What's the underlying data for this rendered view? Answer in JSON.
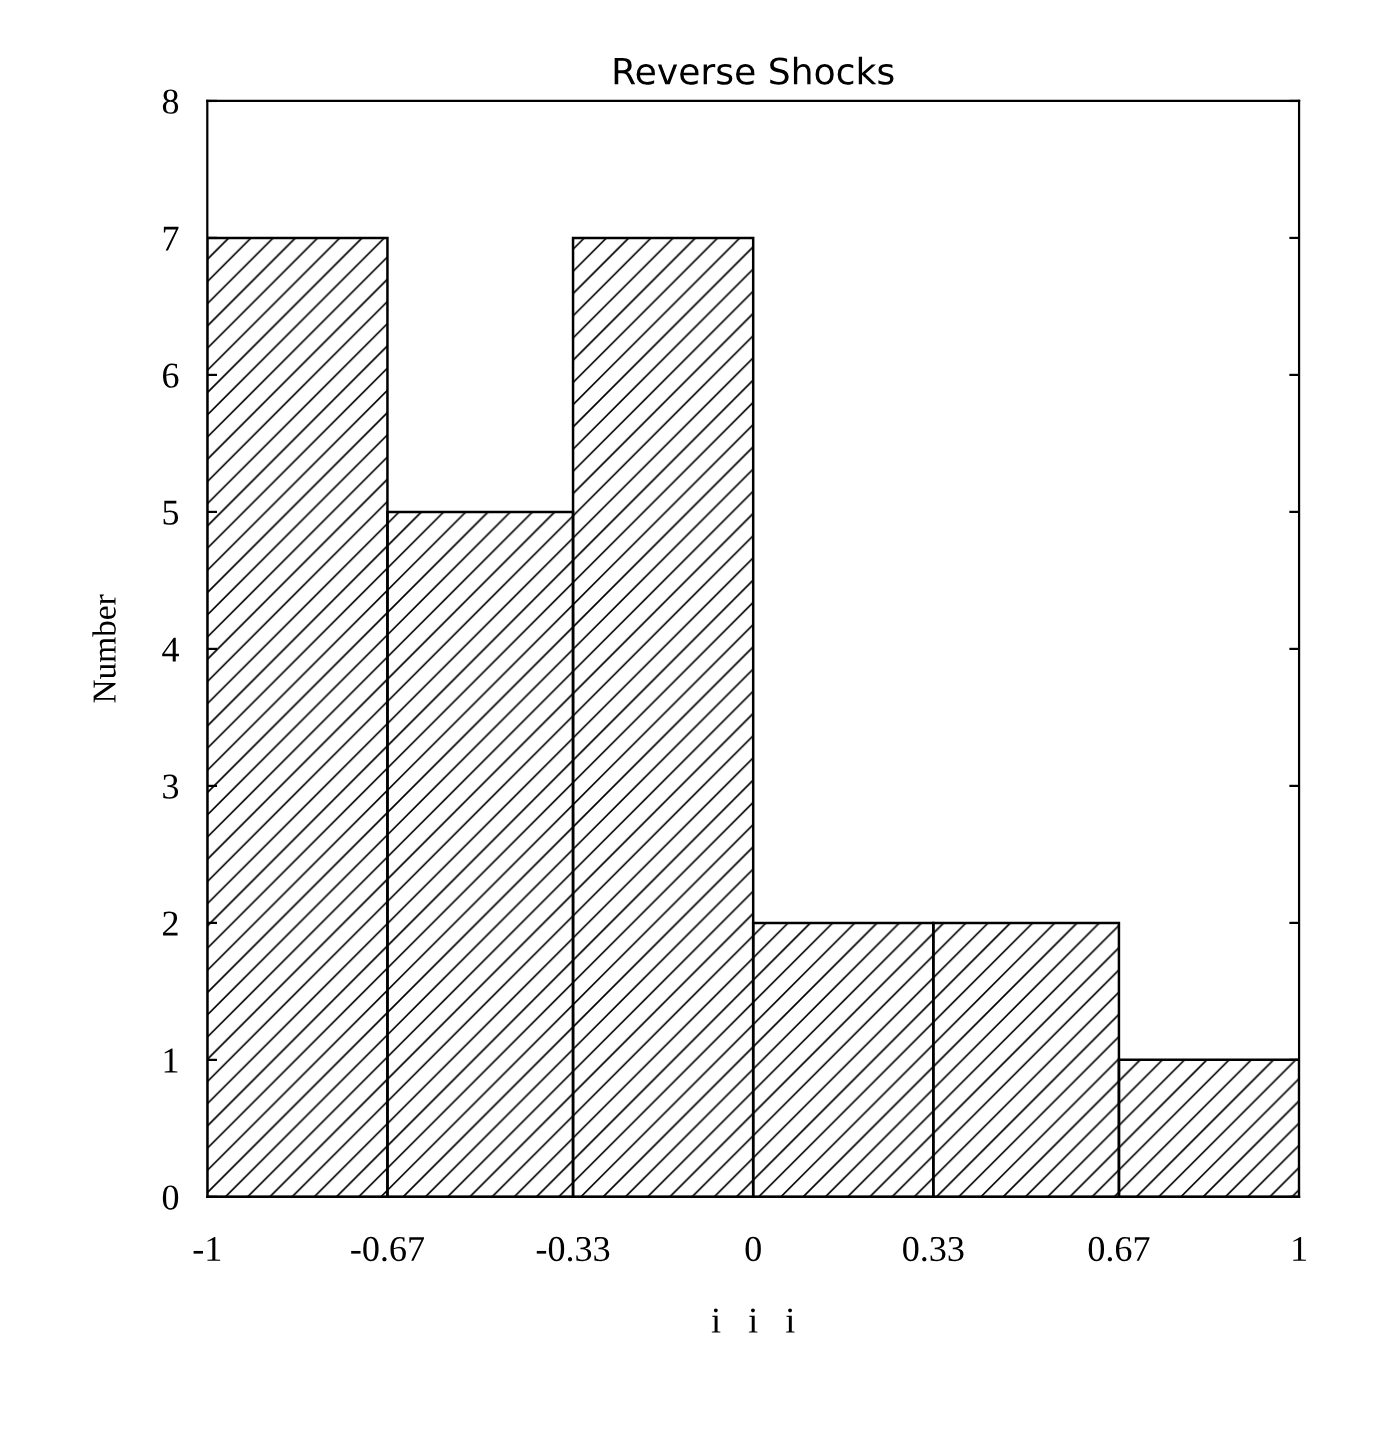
{
  "chart_data": {
    "type": "histogram",
    "title": "Reverse Shocks",
    "xlabel": "i   i   i",
    "ylabel": "Number",
    "bins": [
      -1,
      -0.67,
      -0.33,
      0,
      0.33,
      0.67,
      1
    ],
    "values": [
      7,
      5,
      7,
      2,
      2,
      1
    ],
    "color": "#000000",
    "xlim": [
      -1,
      1
    ],
    "xticks": [
      -1,
      -0.67,
      -0.33,
      0,
      0.33,
      0.67,
      1
    ],
    "ylim": [
      0,
      8
    ],
    "yticks": [
      0,
      1,
      2,
      3,
      4,
      5,
      6,
      7,
      8
    ],
    "grid": false
  }
}
